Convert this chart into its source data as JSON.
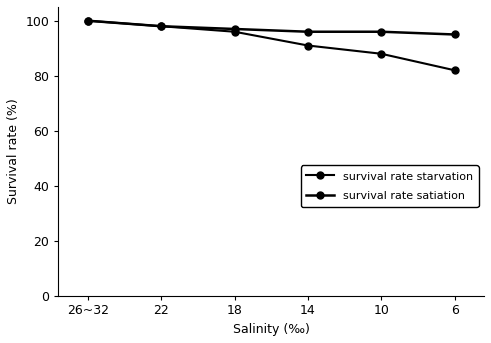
{
  "x_labels": [
    "26~32",
    "22",
    "18",
    "14",
    "10",
    "6"
  ],
  "x_positions": [
    0,
    1,
    2,
    3,
    4,
    5
  ],
  "starvation_y": [
    100,
    98,
    96,
    91,
    88,
    82
  ],
  "satiation_y": [
    100,
    98,
    97,
    96,
    96,
    95
  ],
  "starvation_label": "survival rate starvation",
  "satiation_label": "survival rate satiation",
  "line_color": "#000000",
  "xlabel": "Salinity (‰)",
  "ylabel": "Survival rate (%)",
  "ylim": [
    0,
    105
  ],
  "yticks": [
    0,
    20,
    40,
    60,
    80,
    100
  ],
  "axis_fontsize": 9,
  "tick_fontsize": 9,
  "legend_fontsize": 8,
  "linewidth": 1.5,
  "markersize": 5
}
